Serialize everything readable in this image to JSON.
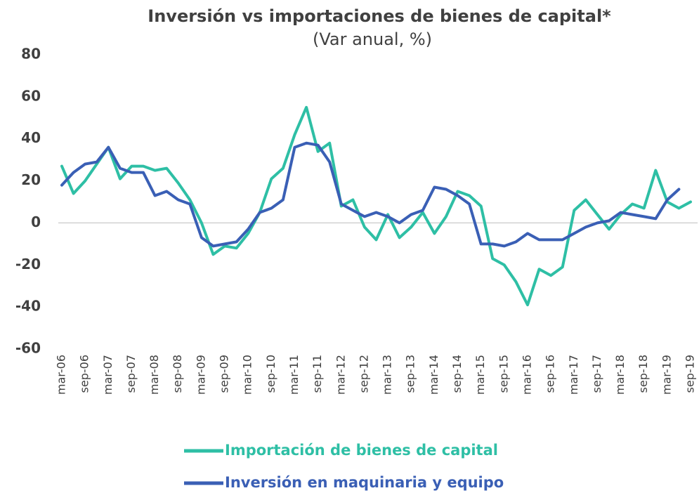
{
  "chart_data": {
    "type": "line",
    "title": "Inversión vs importaciones de bienes de capital*",
    "subtitle": "(Var anual, %)",
    "categories": [
      "mar-06",
      null,
      "sep-06",
      null,
      "mar-07",
      null,
      "sep-07",
      null,
      "mar-08",
      null,
      "sep-08",
      null,
      "mar-09",
      null,
      "sep-09",
      null,
      "mar-10",
      null,
      "sep-10",
      null,
      "mar-11",
      null,
      "sep-11",
      null,
      "mar-12",
      null,
      "sep-12",
      null,
      "mar-13",
      null,
      "sep-13",
      null,
      "mar-14",
      null,
      "sep-14",
      null,
      "mar-15",
      null,
      "sep-15",
      null,
      "mar-16",
      null,
      "sep-16",
      null,
      "mar-17",
      null,
      "sep-17",
      null,
      "mar-18",
      null,
      "sep-18",
      null,
      "mar-19",
      null,
      "sep-19"
    ],
    "series": [
      {
        "name": "Importación de bienes de capital",
        "color": "#2ebfa5",
        "values": [
          27,
          14,
          20,
          28,
          36,
          21,
          27,
          27,
          25,
          26,
          19,
          11,
          0,
          -15,
          -11,
          -12,
          -5,
          5,
          21,
          26,
          42,
          55,
          34,
          38,
          8,
          11,
          -2,
          -8,
          4,
          -7,
          -2,
          5,
          -5,
          3,
          15,
          13,
          8,
          -17,
          -20,
          -28,
          -39,
          -22,
          -25,
          -21,
          6,
          11,
          4,
          -3,
          4,
          9,
          7,
          25,
          10,
          7,
          10
        ]
      },
      {
        "name": "Inversión en maquinaria y equipo",
        "color": "#3a5fb5",
        "values": [
          18,
          24,
          28,
          29,
          36,
          26,
          24,
          24,
          13,
          15,
          11,
          9,
          -7,
          -11,
          -10,
          -9,
          -3,
          5,
          7,
          11,
          36,
          38,
          37,
          29,
          9,
          6,
          3,
          5,
          3,
          0,
          4,
          6,
          17,
          16,
          13,
          9,
          -10,
          -10,
          -11,
          -9,
          -5,
          -8,
          -8,
          -8,
          -5,
          -2,
          0,
          1,
          5,
          4,
          3,
          2,
          11,
          16,
          null
        ]
      }
    ],
    "ylim": [
      -60,
      80
    ],
    "yticks": [
      -60,
      -40,
      -20,
      0,
      20,
      40,
      60,
      80
    ],
    "zero_line": true,
    "legend": "bottom"
  }
}
